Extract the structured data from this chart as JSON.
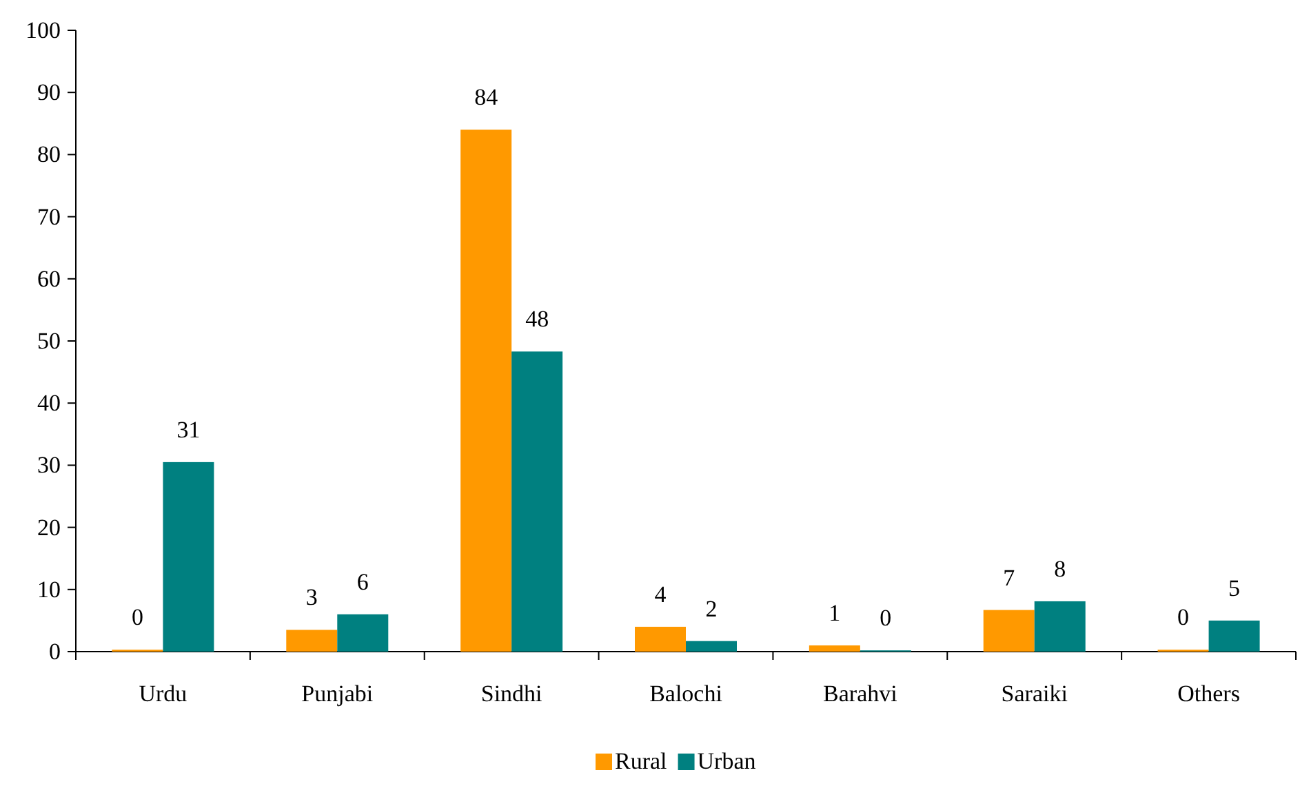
{
  "chart_data": {
    "type": "bar",
    "categories": [
      "Urdu",
      "Punjabi",
      "Sindhi",
      "Balochi",
      "Barahvi",
      "Saraiki",
      "Others"
    ],
    "series": [
      {
        "name": "Rural",
        "color": "#ff9900",
        "values": [
          0.3,
          3.5,
          84,
          4,
          1,
          6.7,
          0.3
        ],
        "value_labels": [
          "0",
          "3",
          "84",
          "4",
          "1",
          "7",
          "0"
        ]
      },
      {
        "name": "Urban",
        "color": "#008080",
        "values": [
          30.5,
          6,
          48.3,
          1.7,
          0.2,
          8.1,
          5
        ],
        "value_labels": [
          "31",
          "6",
          "48",
          "2",
          "0",
          "8",
          "5"
        ]
      }
    ],
    "ylim": [
      0,
      100
    ],
    "yticks": [
      0,
      10,
      20,
      30,
      40,
      50,
      60,
      70,
      80,
      90,
      100
    ],
    "grid": false,
    "legend": "bottom"
  }
}
